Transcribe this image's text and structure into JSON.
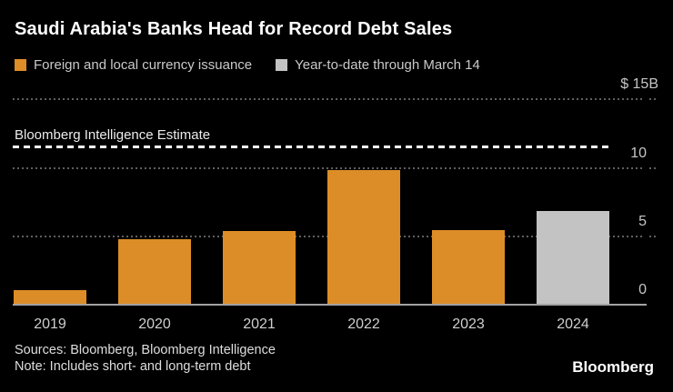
{
  "title": "Saudi Arabia's Banks Head for Record Debt Sales",
  "legend": {
    "items": [
      {
        "label": "Foreign and local currency issuance",
        "color": "#DD8D27"
      },
      {
        "label": "Year-to-date through March 14",
        "color": "#C3C3C3"
      }
    ]
  },
  "chart_data": {
    "type": "bar",
    "title": "Saudi Arabia's Banks Head for Record Debt Sales",
    "categories": [
      "2019",
      "2020",
      "2021",
      "2022",
      "2023",
      "2024"
    ],
    "series": [
      {
        "name": "Foreign and local currency issuance",
        "color": "#DD8D27",
        "values": [
          1.0,
          4.7,
          5.3,
          9.8,
          5.4,
          null
        ]
      },
      {
        "name": "Year-to-date through March 14",
        "color": "#C3C3C3",
        "values": [
          null,
          null,
          null,
          null,
          null,
          6.8
        ]
      }
    ],
    "annotation_line": {
      "label": "Bloomberg Intelligence Estimate",
      "value": 11.5,
      "style": "dashed",
      "color": "#FFFFFF"
    },
    "y_axis": {
      "range": [
        0,
        15
      ],
      "grid": "dotted",
      "ticks": [
        {
          "value": 0,
          "label": "0"
        },
        {
          "value": 5,
          "label": "5"
        },
        {
          "value": 10,
          "label": "10"
        },
        {
          "value": 15,
          "label": "$ 15B"
        }
      ]
    },
    "xlabel": "",
    "ylabel": "",
    "legend_position": "top-left"
  },
  "footer": {
    "sources": "Sources: Bloomberg, Bloomberg Intelligence",
    "note": "Note: Includes short- and long-term debt",
    "brand": "Bloomberg"
  },
  "colors": {
    "background": "#000000",
    "orange": "#DD8D27",
    "gray": "#C3C3C3",
    "grid_dots": "#5F5F5F",
    "axis_text": "#C6C6C6",
    "estimate_line": "#FFFFFF"
  }
}
